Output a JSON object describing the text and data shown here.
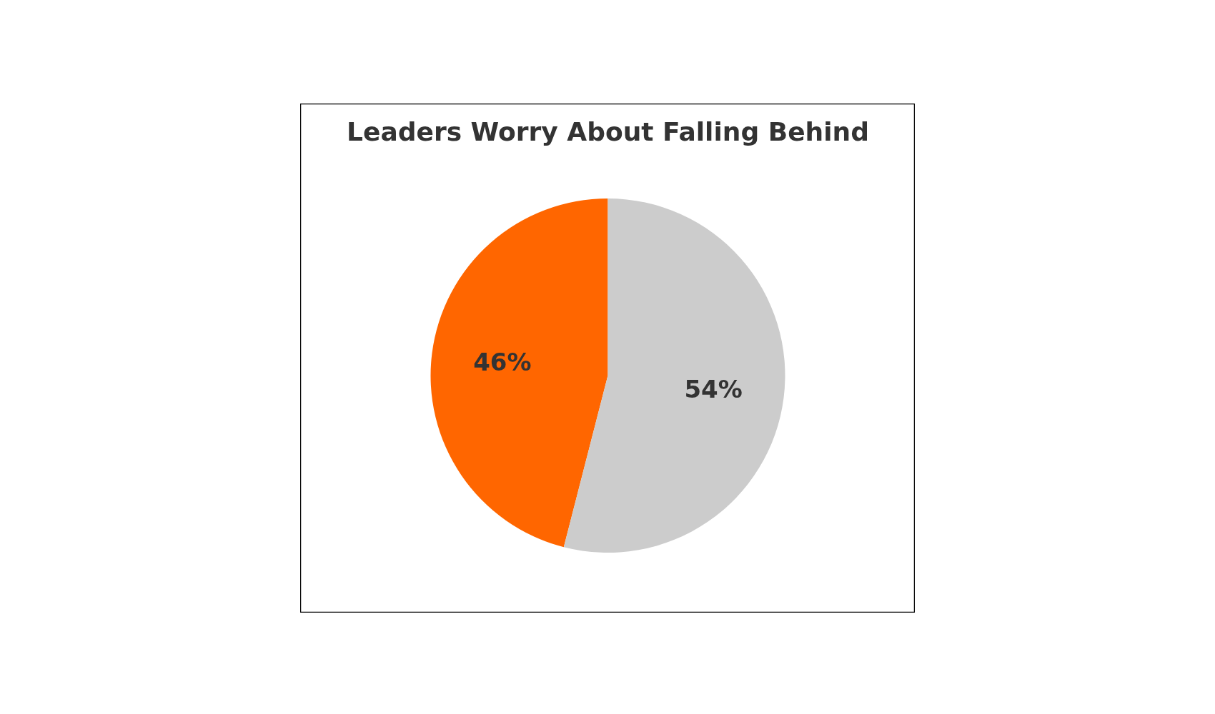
{
  "chart_data": {
    "type": "pie",
    "title": "Leaders Worry About Falling Behind",
    "categories": [
      null,
      null
    ],
    "values": [
      46,
      54
    ],
    "colors": [
      "#ff6600",
      "#cccccc"
    ],
    "value_labels": [
      "46%",
      "54%"
    ]
  }
}
